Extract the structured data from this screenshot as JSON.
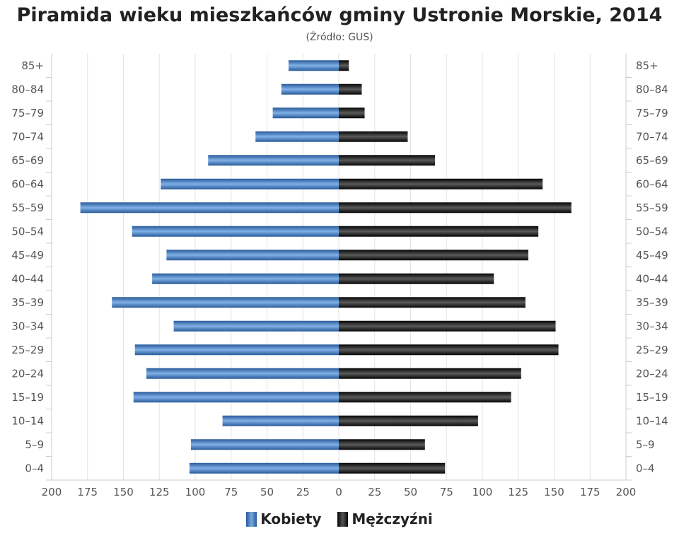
{
  "chart_data": {
    "type": "bar",
    "title": "Piramida wieku mieszkańców gminy Ustronie Morskie, 2014",
    "subtitle": "(Źródło: GUS)",
    "categories": [
      "85+",
      "80–84",
      "75–79",
      "70–74",
      "65–69",
      "60–64",
      "55–59",
      "50–54",
      "45–49",
      "40–44",
      "35–39",
      "30–34",
      "25–29",
      "20–24",
      "15–19",
      "10–14",
      "5–9",
      "0–4"
    ],
    "series": [
      {
        "name": "Kobiety",
        "values": [
          35,
          40,
          46,
          58,
          91,
          124,
          180,
          144,
          120,
          130,
          158,
          115,
          142,
          134,
          143,
          81,
          103,
          104
        ]
      },
      {
        "name": "Mężczyźni",
        "values": [
          7,
          16,
          18,
          48,
          67,
          142,
          162,
          139,
          132,
          108,
          130,
          151,
          153,
          127,
          120,
          97,
          60,
          74
        ]
      }
    ],
    "xlim": [
      -200,
      200
    ],
    "x_ticks": [
      "200",
      "175",
      "150",
      "125",
      "100",
      "75",
      "50",
      "25",
      "0",
      "25",
      "50",
      "75",
      "100",
      "125",
      "150",
      "175",
      "200"
    ],
    "grid": true,
    "legend_position": "bottom-center",
    "colors": {
      "Kobiety": "#3c78c0",
      "Mężczyźni": "#111111"
    }
  }
}
